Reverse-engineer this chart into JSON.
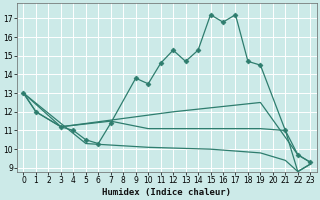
{
  "bg_color": "#cceae8",
  "grid_color": "#ffffff",
  "line_color": "#2e7d6e",
  "xlabel": "Humidex (Indice chaleur)",
  "xlim": [
    -0.5,
    23.5
  ],
  "ylim": [
    8.8,
    17.8
  ],
  "yticks": [
    9,
    10,
    11,
    12,
    13,
    14,
    15,
    16,
    17
  ],
  "xticks": [
    0,
    1,
    2,
    3,
    4,
    5,
    6,
    7,
    8,
    9,
    10,
    11,
    12,
    13,
    14,
    15,
    16,
    17,
    18,
    19,
    20,
    21,
    22,
    23
  ],
  "line1_x": [
    0,
    1,
    3,
    4,
    5,
    6,
    7,
    9,
    10,
    11,
    12,
    13,
    14,
    15,
    16,
    17,
    18,
    19,
    21,
    22,
    23
  ],
  "line1_y": [
    13,
    12,
    11.2,
    11.0,
    10.5,
    10.3,
    11.4,
    13.8,
    13.5,
    14.6,
    15.3,
    14.7,
    15.3,
    17.2,
    16.8,
    17.2,
    14.7,
    14.5,
    11.0,
    9.7,
    9.3
  ],
  "line2_x": [
    0,
    1,
    3,
    12,
    19,
    22,
    23
  ],
  "line2_y": [
    13,
    12,
    11.2,
    12.0,
    12.5,
    9.7,
    9.3
  ],
  "line3_x": [
    0,
    3,
    7,
    10,
    19,
    21,
    22,
    23
  ],
  "line3_y": [
    13,
    11.2,
    11.5,
    11.1,
    11.1,
    11.0,
    8.8,
    9.2
  ],
  "line4_x": [
    0,
    5,
    10,
    15,
    19,
    21,
    22,
    23
  ],
  "line4_y": [
    13,
    10.3,
    10.1,
    10.0,
    9.8,
    9.4,
    8.8,
    9.2
  ]
}
